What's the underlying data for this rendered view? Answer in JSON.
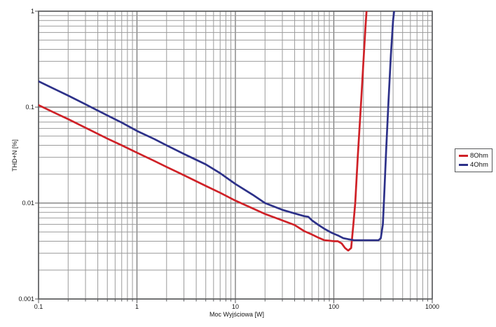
{
  "chart_data": {
    "type": "line",
    "title": "",
    "xlabel": "Moc Wyjściowa [W]",
    "ylabel": "THD+N [%]",
    "x_scale": "log",
    "y_scale": "log",
    "xlim": [
      0.1,
      1000
    ],
    "ylim": [
      0.001,
      1
    ],
    "x_tick_labels": [
      "0.1",
      "1",
      "10",
      "100",
      "1000"
    ],
    "x_tick_values": [
      0.1,
      1,
      10,
      100,
      1000
    ],
    "y_tick_labels": [
      "1",
      "0.1",
      "0.01",
      "0.001"
    ],
    "y_tick_values": [
      1,
      0.1,
      0.01,
      0.001
    ],
    "grid": {
      "minor": true,
      "major": true,
      "minor_color": "#9b9b9b",
      "major_color": "#6f6f6f",
      "border_color": "#58595b"
    },
    "legend": {
      "position": "outside-right",
      "border_color": "#58595b",
      "background": "#ffffff"
    },
    "series": [
      {
        "name": "8Ohm",
        "color": "#cf2127",
        "points": [
          [
            0.1,
            0.105
          ],
          [
            0.15,
            0.086
          ],
          [
            0.2,
            0.075
          ],
          [
            0.3,
            0.061
          ],
          [
            0.5,
            0.047
          ],
          [
            0.7,
            0.04
          ],
          [
            1,
            0.0335
          ],
          [
            1.5,
            0.0275
          ],
          [
            2,
            0.0238
          ],
          [
            3,
            0.0195
          ],
          [
            5,
            0.0151
          ],
          [
            7,
            0.0128
          ],
          [
            10,
            0.0106
          ],
          [
            15,
            0.0088
          ],
          [
            20,
            0.0077
          ],
          [
            30,
            0.0066
          ],
          [
            40,
            0.0059
          ],
          [
            50,
            0.0051
          ],
          [
            60,
            0.0047
          ],
          [
            70,
            0.00435
          ],
          [
            80,
            0.0041
          ],
          [
            90,
            0.00405
          ],
          [
            100,
            0.004
          ],
          [
            110,
            0.004
          ],
          [
            120,
            0.0038
          ],
          [
            130,
            0.0034
          ],
          [
            140,
            0.0032
          ],
          [
            150,
            0.0034
          ],
          [
            158,
            0.006
          ],
          [
            165,
            0.01
          ],
          [
            175,
            0.03
          ],
          [
            190,
            0.12
          ],
          [
            200,
            0.3
          ],
          [
            210,
            0.7
          ],
          [
            215,
            1.0
          ],
          [
            219,
            1.4
          ]
        ]
      },
      {
        "name": "4Ohm",
        "color": "#2d3189",
        "points": [
          [
            0.1,
            0.186
          ],
          [
            0.15,
            0.152
          ],
          [
            0.2,
            0.132
          ],
          [
            0.3,
            0.107
          ],
          [
            0.5,
            0.082
          ],
          [
            0.7,
            0.069
          ],
          [
            1,
            0.0565
          ],
          [
            1.5,
            0.0465
          ],
          [
            2,
            0.04
          ],
          [
            3,
            0.0325
          ],
          [
            5,
            0.0253
          ],
          [
            7,
            0.0205
          ],
          [
            10,
            0.0158
          ],
          [
            15,
            0.0122
          ],
          [
            20,
            0.01
          ],
          [
            30,
            0.0085
          ],
          [
            40,
            0.0078
          ],
          [
            50,
            0.0073
          ],
          [
            55,
            0.0072
          ],
          [
            60,
            0.0066
          ],
          [
            70,
            0.0059
          ],
          [
            80,
            0.0054
          ],
          [
            95,
            0.0049
          ],
          [
            110,
            0.0046
          ],
          [
            125,
            0.0043
          ],
          [
            140,
            0.0042
          ],
          [
            160,
            0.0041
          ],
          [
            200,
            0.0041
          ],
          [
            250,
            0.0041
          ],
          [
            285,
            0.0041
          ],
          [
            300,
            0.0043
          ],
          [
            315,
            0.006
          ],
          [
            325,
            0.012
          ],
          [
            340,
            0.035
          ],
          [
            360,
            0.12
          ],
          [
            380,
            0.35
          ],
          [
            400,
            0.8
          ],
          [
            410,
            1.0
          ],
          [
            414,
            1.4
          ]
        ]
      }
    ]
  }
}
